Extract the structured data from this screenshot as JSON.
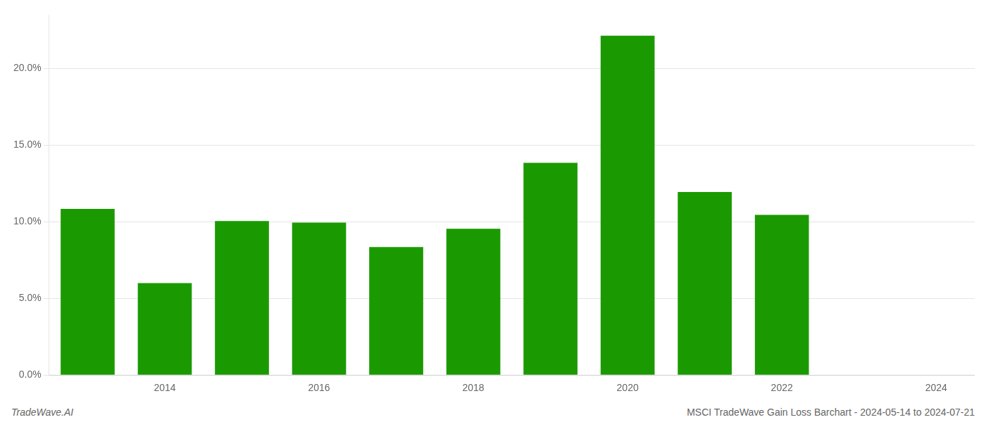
{
  "chart_data": {
    "type": "bar",
    "x": [
      2013,
      2014,
      2015,
      2016,
      2017,
      2018,
      2019,
      2020,
      2021,
      2022,
      2023
    ],
    "values": [
      0.1085,
      0.06,
      0.1005,
      0.0995,
      0.0835,
      0.0955,
      0.1385,
      0.2215,
      0.1195,
      0.1045,
      0.0
    ],
    "color": "#1a9a00",
    "xlim": [
      2012.5,
      2024.5
    ],
    "xticks": [
      2014,
      2016,
      2018,
      2020,
      2022,
      2024
    ],
    "ylim": [
      0,
      0.235
    ],
    "yticks": [
      {
        "value": 0.0,
        "label": "0.0%"
      },
      {
        "value": 0.05,
        "label": "5.0%"
      },
      {
        "value": 0.1,
        "label": "10.0%"
      },
      {
        "value": 0.15,
        "label": "15.0%"
      },
      {
        "value": 0.2,
        "label": "20.0%"
      }
    ],
    "grid": true,
    "annotations": [
      "TradeWave.AI",
      "MSCI TradeWave Gain Loss Barchart - 2024-05-14 to 2024-07-21"
    ]
  }
}
